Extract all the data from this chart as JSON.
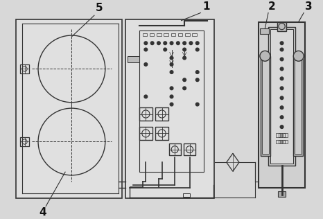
{
  "bg_color": "#d8d8d8",
  "line_color": "#333333",
  "label_color": "#111111",
  "figsize": [
    4.66,
    3.16
  ],
  "dpi": 100
}
